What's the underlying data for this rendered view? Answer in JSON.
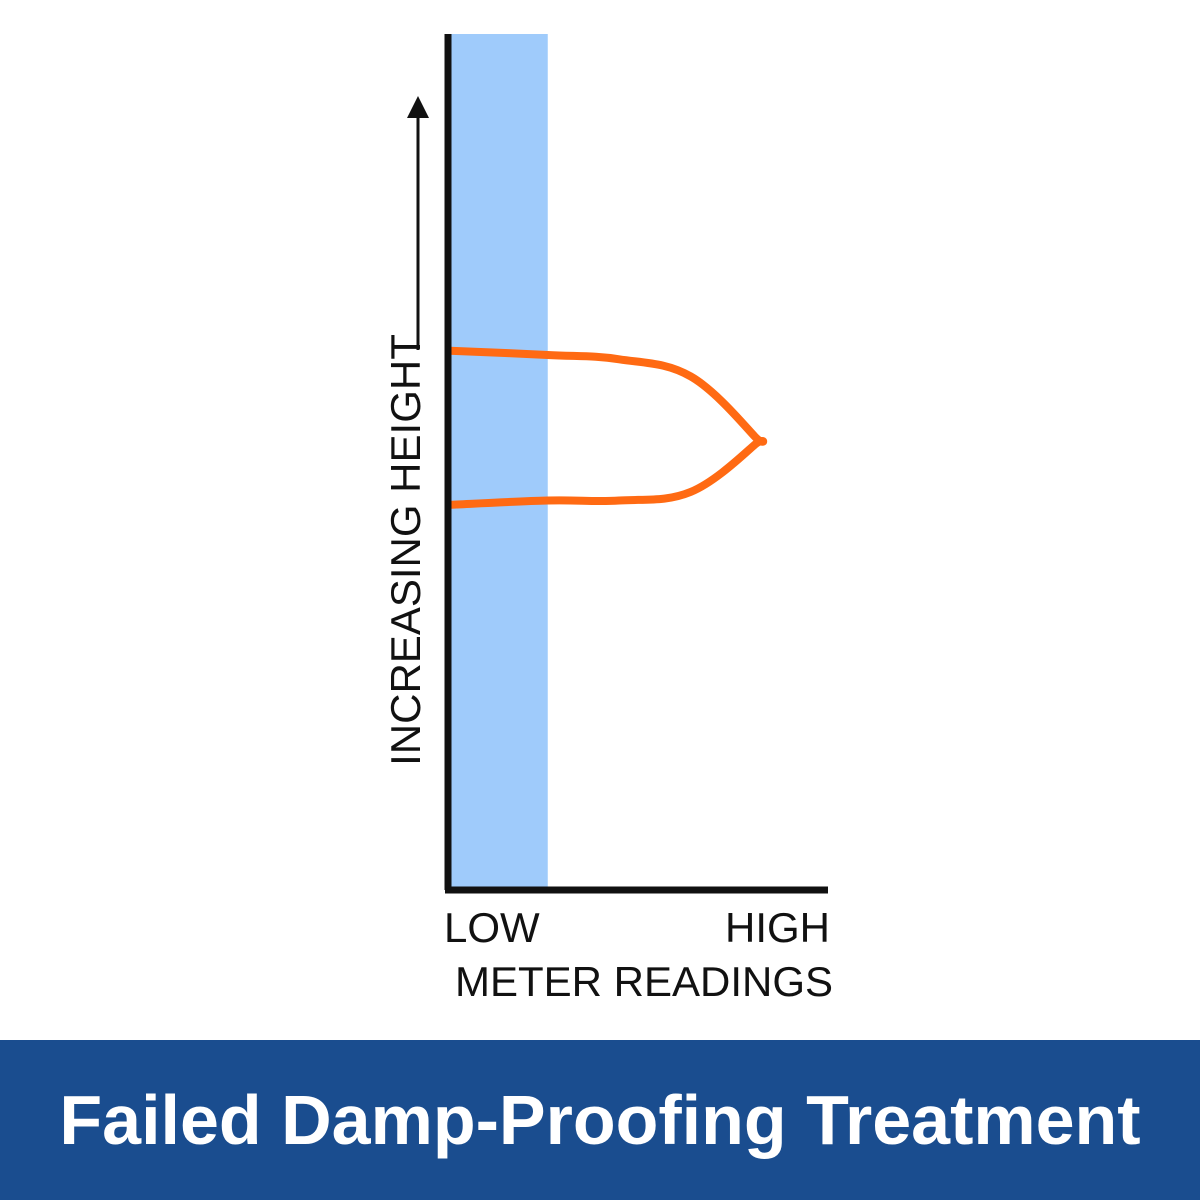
{
  "banner": {
    "title": "Failed Damp-Proofing Treatment",
    "background_color": "#1a4d8f",
    "text_color": "#ffffff"
  },
  "chart_data": {
    "type": "line",
    "title": "",
    "xlabel": "METER READINGS",
    "ylabel": "INCREASING HEIGHT",
    "x_tick_labels": [
      "LOW",
      "HIGH"
    ],
    "xlim": [
      0,
      1
    ],
    "ylim": [
      0,
      1
    ],
    "grid": false,
    "low_reading_band": {
      "x_range": [
        0,
        0.26
      ],
      "color": "#9fcbfb"
    },
    "series": [
      {
        "color": "#ff6a13",
        "x": [
          0,
          0.26,
          0.45,
          0.64,
          0.81,
          0.81,
          0.64,
          0.45,
          0.26,
          0
        ],
        "y": [
          0.63,
          0.625,
          0.62,
          0.6,
          0.53,
          0.52,
          0.465,
          0.455,
          0.455,
          0.45
        ]
      }
    ]
  }
}
